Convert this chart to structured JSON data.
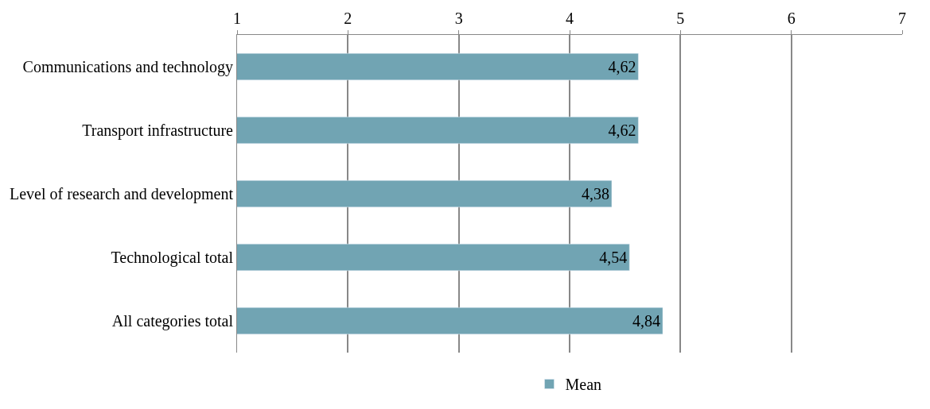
{
  "chart_data": {
    "type": "bar",
    "orientation": "horizontal",
    "categories": [
      "Communications and technology",
      "Transport infrastructure",
      "Level of research and development",
      "Technological total",
      "All categories total"
    ],
    "series": [
      {
        "name": "Mean",
        "color": "#71a4b3",
        "values": [
          4.62,
          4.62,
          4.38,
          4.54,
          4.84
        ],
        "value_labels": [
          "4,62",
          "4,62",
          "4,38",
          "4,54",
          "4,84"
        ]
      }
    ],
    "xlim": [
      1,
      7
    ],
    "xticks": [
      1,
      2,
      3,
      4,
      5,
      6,
      7
    ],
    "grid": "x",
    "legend": "bottom"
  }
}
